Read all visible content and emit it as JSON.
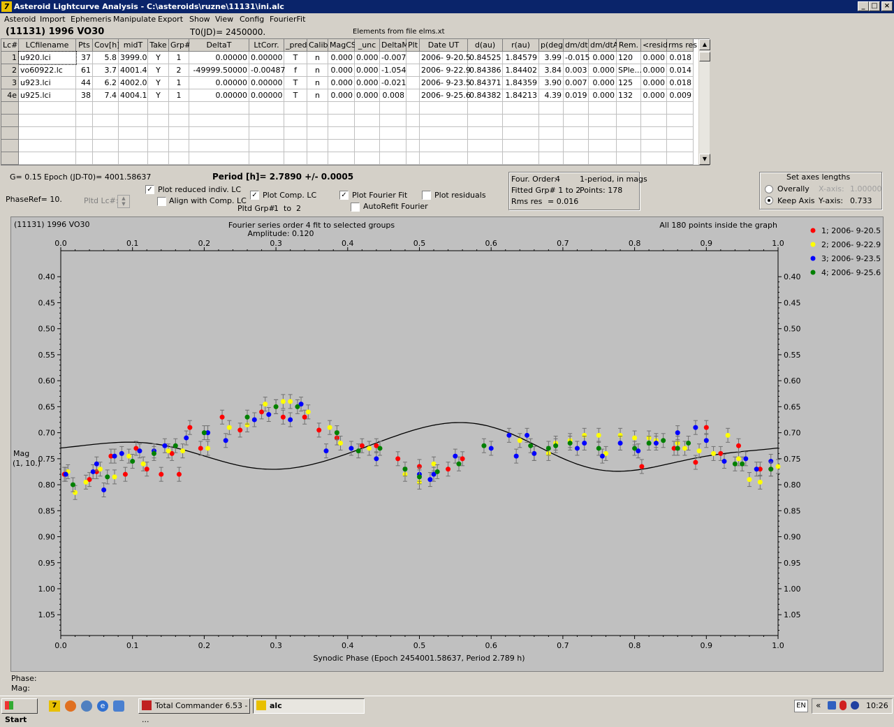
{
  "window": {
    "title": "Asteroid Lightcurve Analysis - C:\\asteroids\\ruzne\\11131\\ini.alc"
  },
  "menu": [
    "Asteroid",
    "Import",
    "Ephemeris",
    "Manipulate",
    "Export",
    "Show",
    "View",
    "Config",
    "FourierFit"
  ],
  "header": {
    "asteroid": "(11131) 1996 VO30",
    "t0": "T0(JD)= 2450000.",
    "elements": "Elements from file elms.xt"
  },
  "table": {
    "columns": [
      {
        "label": "Lc#",
        "w": 25
      },
      {
        "label": "LCfilename",
        "w": 82
      },
      {
        "label": "Pts",
        "w": 24
      },
      {
        "label": "Cov[h]",
        "w": 37
      },
      {
        "label": "midT",
        "w": 42
      },
      {
        "label": "Take",
        "w": 30
      },
      {
        "label": "Grp#",
        "w": 29
      },
      {
        "label": "DeltaT",
        "w": 86
      },
      {
        "label": "LtCorr.",
        "w": 50
      },
      {
        "label": "_pred.",
        "w": 33
      },
      {
        "label": "Calib.",
        "w": 30
      },
      {
        "label": "MagCS",
        "w": 38
      },
      {
        "label": "_unc",
        "w": 36
      },
      {
        "label": "DeltaM",
        "w": 38
      },
      {
        "label": "Plt",
        "w": 19
      },
      {
        "label": "Date UT",
        "w": 69
      },
      {
        "label": "d(au)",
        "w": 50
      },
      {
        "label": "r(au)",
        "w": 52
      },
      {
        "label": "p(deg)",
        "w": 35
      },
      {
        "label": "dm/dt",
        "w": 36
      },
      {
        "label": "dm/dtA",
        "w": 40
      },
      {
        "label": "Rem.",
        "w": 35
      },
      {
        "label": "<resid>",
        "w": 37
      },
      {
        "label": "rms res",
        "w": 38
      }
    ],
    "align": [
      "r",
      "l",
      "r",
      "r",
      "r",
      "c",
      "c",
      "r",
      "r",
      "c",
      "c",
      "r",
      "r",
      "r",
      "c",
      "c",
      "r",
      "r",
      "r",
      "r",
      "r",
      "l",
      "r",
      "r"
    ],
    "rows": [
      [
        "1",
        "u920.lci",
        "37",
        "5.8",
        "3999.0",
        "Y",
        "1",
        "0.00000",
        "0.00000",
        "T",
        "n",
        "0.000",
        "0.000",
        "-0.007",
        "",
        "2006- 9-20.5",
        "0.84525",
        "1.84579",
        "3.99",
        "-0.015",
        "0.000",
        "120",
        "0.000",
        "0.018"
      ],
      [
        "2",
        "vo60922.lc",
        "61",
        "3.7",
        "4001.4",
        "Y",
        "2",
        "-49999.50000",
        "-0.00487",
        "f",
        "n",
        "0.000",
        "0.000",
        "-1.054",
        "",
        "2006- 9-22.9",
        "0.84386",
        "1.84402",
        "3.84",
        "0.003",
        "0.000",
        "SPle...",
        "0.000",
        "0.014"
      ],
      [
        "3",
        "u923.lci",
        "44",
        "6.2",
        "4002.0",
        "Y",
        "1",
        "0.00000",
        "0.00000",
        "T",
        "n",
        "0.000",
        "0.000",
        "-0.021",
        "",
        "2006- 9-23.5",
        "0.84371",
        "1.84359",
        "3.90",
        "0.007",
        "0.000",
        "125",
        "0.000",
        "0.018"
      ],
      [
        "4e",
        "u925.lci",
        "38",
        "7.4",
        "4004.1",
        "Y",
        "1",
        "0.00000",
        "0.00000",
        "T",
        "n",
        "0.000",
        "0.000",
        "0.008",
        "",
        "2006- 9-25.6",
        "0.84382",
        "1.84213",
        "4.39",
        "0.019",
        "0.000",
        "132",
        "0.000",
        "0.009"
      ]
    ],
    "empty_rows": 5
  },
  "controls": {
    "g": "G= 0.15",
    "epoch": "Epoch (JD-T0)= 4001.58637",
    "period": "Period [h]= 2.7890 +/- 0.0005",
    "phaseref": "PhaseRef= 10.",
    "pltdlc": "Pltd Lc#:",
    "plot_reduced": "Plot reduced indiv. LC",
    "align_comp": "Align with Comp. LC",
    "plot_comp": "Plot Comp. LC",
    "pltd_grp": "Pltd Grp#",
    "grp_from": "1",
    "grp_to_label": "to",
    "grp_to": "2",
    "plot_fourier": "Plot Fourier Fit",
    "autorefit": "AutoRefit Fourier",
    "plot_residuals": "Plot residuals",
    "four_order_label": "Four. Order:",
    "four_order": "4",
    "one_period": "1-period, in mags",
    "fitted_grp": "Fitted Grp# 1 to 2",
    "points": "Points: 178",
    "rms_label": "Rms res",
    "rms": "= 0.016",
    "axes_title": "Set axes lengths",
    "overally": "Overally",
    "keep_axis": "Keep Axis",
    "xaxis_label": "X-axis:",
    "xaxis_val": "1.00000",
    "yaxis_label": "Y-axis:",
    "yaxis_val": "0.733"
  },
  "chart_data": {
    "type": "scatter",
    "title_left": "(11131) 1996 VO30",
    "title": "Fourier series order 4 fit to selected groups",
    "subtitle": "Amplitude: 0.120",
    "note": "All 180 points inside the graph",
    "xlabel": "Synodic Phase (Epoch 2454001.58637, Period 2.789 h)",
    "ylabel": "Mag",
    "ylabel2": "(1, 10.)",
    "xlim": [
      0,
      1
    ],
    "ylim": [
      0.35,
      1.09
    ],
    "y_inverted": true,
    "xticks": [
      "0.0",
      "0.1",
      "0.2",
      "0.3",
      "0.4",
      "0.5",
      "0.6",
      "0.7",
      "0.8",
      "0.9",
      "1.0"
    ],
    "yticks": [
      "0.40",
      "0.45",
      "0.50",
      "0.55",
      "0.60",
      "0.65",
      "0.70",
      "0.75",
      "0.80",
      "0.85",
      "0.90",
      "0.95",
      "1.00",
      "1.05"
    ],
    "fourier": {
      "mean": 0.735,
      "a": [
        0.005,
        0.04,
        0.0,
        0.0
      ],
      "b": [
        0.005,
        0.0,
        -0.012,
        0.0
      ],
      "phase": [
        0.0,
        -0.05,
        0.0,
        0.0
      ]
    },
    "legend": [
      {
        "name": "1; 2006- 9-20.5",
        "color": "#ff0000"
      },
      {
        "name": "2; 2006- 9-22.9",
        "color": "#ffff00"
      },
      {
        "name": "3; 2006- 9-23.5",
        "color": "#0000ff"
      },
      {
        "name": "4; 2006- 9-25.6",
        "color": "#008000"
      }
    ],
    "series": [
      {
        "name": "1; 2006- 9-20.5",
        "points": [
          [
            0.005,
            0.78
          ],
          [
            0.04,
            0.79
          ],
          [
            0.05,
            0.775
          ],
          [
            0.07,
            0.745
          ],
          [
            0.09,
            0.78
          ],
          [
            0.105,
            0.73
          ],
          [
            0.12,
            0.77
          ],
          [
            0.14,
            0.78
          ],
          [
            0.155,
            0.74
          ],
          [
            0.165,
            0.78
          ],
          [
            0.18,
            0.69
          ],
          [
            0.195,
            0.73
          ],
          [
            0.225,
            0.67
          ],
          [
            0.25,
            0.695
          ],
          [
            0.28,
            0.66
          ],
          [
            0.31,
            0.67
          ],
          [
            0.34,
            0.67
          ],
          [
            0.36,
            0.695
          ],
          [
            0.385,
            0.71
          ],
          [
            0.42,
            0.725
          ],
          [
            0.44,
            0.725
          ],
          [
            0.47,
            0.75
          ],
          [
            0.5,
            0.765
          ],
          [
            0.54,
            0.77
          ],
          [
            0.56,
            0.75
          ],
          [
            0.81,
            0.765
          ],
          [
            0.855,
            0.73
          ],
          [
            0.885,
            0.757
          ],
          [
            0.9,
            0.69
          ],
          [
            0.92,
            0.74
          ],
          [
            0.945,
            0.725
          ],
          [
            0.975,
            0.77
          ],
          [
            0.99,
            0.77
          ]
        ]
      },
      {
        "name": "2; 2006- 9-22.9",
        "points": [
          [
            0.01,
            0.775
          ],
          [
            0.02,
            0.815
          ],
          [
            0.035,
            0.795
          ],
          [
            0.055,
            0.77
          ],
          [
            0.075,
            0.785
          ],
          [
            0.095,
            0.745
          ],
          [
            0.115,
            0.76
          ],
          [
            0.15,
            0.735
          ],
          [
            0.17,
            0.735
          ],
          [
            0.205,
            0.73
          ],
          [
            0.235,
            0.69
          ],
          [
            0.26,
            0.685
          ],
          [
            0.285,
            0.645
          ],
          [
            0.3,
            0.65
          ],
          [
            0.31,
            0.64
          ],
          [
            0.32,
            0.64
          ],
          [
            0.345,
            0.66
          ],
          [
            0.375,
            0.69
          ],
          [
            0.39,
            0.72
          ],
          [
            0.43,
            0.73
          ],
          [
            0.48,
            0.78
          ],
          [
            0.5,
            0.795
          ],
          [
            0.52,
            0.76
          ],
          [
            0.64,
            0.715
          ],
          [
            0.66,
            0.74
          ],
          [
            0.68,
            0.74
          ],
          [
            0.69,
            0.72
          ],
          [
            0.71,
            0.715
          ],
          [
            0.73,
            0.705
          ],
          [
            0.75,
            0.705
          ],
          [
            0.76,
            0.74
          ],
          [
            0.78,
            0.705
          ],
          [
            0.8,
            0.71
          ],
          [
            0.82,
            0.71
          ],
          [
            0.83,
            0.715
          ],
          [
            0.86,
            0.72
          ],
          [
            0.87,
            0.73
          ],
          [
            0.89,
            0.735
          ],
          [
            0.91,
            0.74
          ],
          [
            0.93,
            0.705
          ],
          [
            0.945,
            0.75
          ],
          [
            0.96,
            0.79
          ],
          [
            0.975,
            0.795
          ],
          [
            1.0,
            0.765
          ]
        ]
      },
      {
        "name": "3; 2006- 9-23.5",
        "points": [
          [
            0.007,
            0.78
          ],
          [
            0.045,
            0.775
          ],
          [
            0.05,
            0.76
          ],
          [
            0.06,
            0.81
          ],
          [
            0.075,
            0.745
          ],
          [
            0.085,
            0.74
          ],
          [
            0.11,
            0.735
          ],
          [
            0.13,
            0.735
          ],
          [
            0.145,
            0.725
          ],
          [
            0.175,
            0.71
          ],
          [
            0.205,
            0.7
          ],
          [
            0.23,
            0.715
          ],
          [
            0.27,
            0.675
          ],
          [
            0.29,
            0.665
          ],
          [
            0.32,
            0.675
          ],
          [
            0.335,
            0.645
          ],
          [
            0.37,
            0.735
          ],
          [
            0.405,
            0.73
          ],
          [
            0.44,
            0.75
          ],
          [
            0.5,
            0.78
          ],
          [
            0.515,
            0.79
          ],
          [
            0.52,
            0.78
          ],
          [
            0.55,
            0.745
          ],
          [
            0.6,
            0.73
          ],
          [
            0.625,
            0.705
          ],
          [
            0.635,
            0.745
          ],
          [
            0.65,
            0.705
          ],
          [
            0.66,
            0.74
          ],
          [
            0.72,
            0.73
          ],
          [
            0.73,
            0.72
          ],
          [
            0.755,
            0.745
          ],
          [
            0.78,
            0.72
          ],
          [
            0.805,
            0.735
          ],
          [
            0.83,
            0.72
          ],
          [
            0.86,
            0.7
          ],
          [
            0.885,
            0.69
          ],
          [
            0.9,
            0.715
          ],
          [
            0.925,
            0.755
          ],
          [
            0.955,
            0.75
          ],
          [
            0.97,
            0.77
          ],
          [
            0.99,
            0.755
          ]
        ]
      },
      {
        "name": "4; 2006- 9-25.6",
        "points": [
          [
            0.017,
            0.8
          ],
          [
            0.065,
            0.785
          ],
          [
            0.1,
            0.755
          ],
          [
            0.13,
            0.74
          ],
          [
            0.16,
            0.725
          ],
          [
            0.2,
            0.7
          ],
          [
            0.26,
            0.67
          ],
          [
            0.3,
            0.65
          ],
          [
            0.33,
            0.65
          ],
          [
            0.385,
            0.7
          ],
          [
            0.415,
            0.735
          ],
          [
            0.445,
            0.73
          ],
          [
            0.48,
            0.77
          ],
          [
            0.5,
            0.785
          ],
          [
            0.525,
            0.775
          ],
          [
            0.555,
            0.76
          ],
          [
            0.59,
            0.725
          ],
          [
            0.655,
            0.725
          ],
          [
            0.68,
            0.73
          ],
          [
            0.69,
            0.725
          ],
          [
            0.71,
            0.72
          ],
          [
            0.75,
            0.73
          ],
          [
            0.8,
            0.73
          ],
          [
            0.82,
            0.72
          ],
          [
            0.84,
            0.715
          ],
          [
            0.86,
            0.73
          ],
          [
            0.875,
            0.72
          ],
          [
            0.94,
            0.76
          ],
          [
            0.95,
            0.76
          ],
          [
            0.99,
            0.77
          ]
        ]
      }
    ]
  },
  "status": {
    "phase": "Phase:",
    "mag": "Mag:"
  },
  "taskbar": {
    "start": "Start",
    "task1": "Total Commander 6.53 - ...",
    "task2": "alc",
    "lang": "EN",
    "time": "10:26"
  }
}
